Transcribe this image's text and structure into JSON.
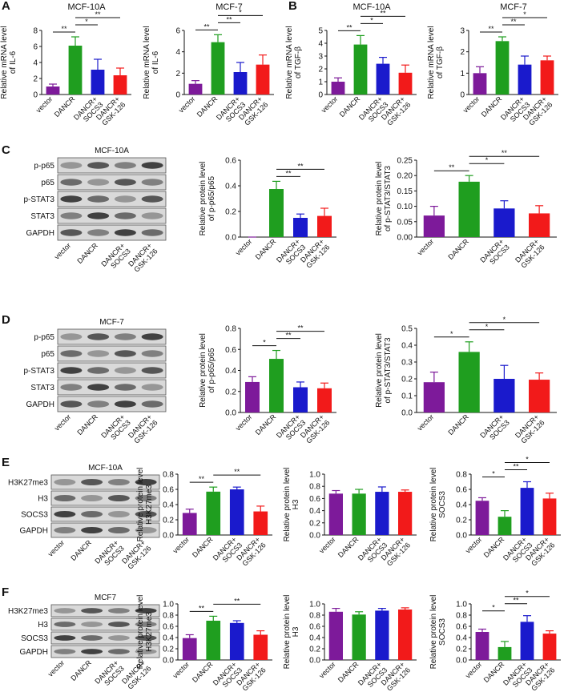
{
  "panel_labels": [
    "A",
    "B",
    "C",
    "D",
    "E",
    "F"
  ],
  "blots": [
    {
      "title": "MCF-10A",
      "rows": [
        "p-p65",
        "p65",
        "p-STAT3",
        "STAT3",
        "GAPDH"
      ],
      "lanes": [
        [
          "vector"
        ],
        [
          "DANCR"
        ],
        [
          "DANCR+",
          "SOCS3"
        ],
        [
          "DANCR+",
          "GSK-126"
        ]
      ]
    },
    {
      "title": "MCF-7",
      "rows": [
        "p-p65",
        "p65",
        "p-STAT3",
        "STAT3",
        "GAPDH"
      ],
      "lanes": [
        [
          "vector"
        ],
        [
          "DANCR"
        ],
        [
          "DANCR+",
          "SOCS3"
        ],
        [
          "DANCR+",
          "GSK-126"
        ]
      ]
    },
    {
      "title": "MCF-10A",
      "rows": [
        "H3K27me3",
        "H3",
        "SOCS3",
        "GAPDH"
      ],
      "lanes": [
        [
          "vector"
        ],
        [
          "DANCR"
        ],
        [
          "DANCR+",
          "SOCS3"
        ],
        [
          "DANCR+",
          "GSK-126"
        ]
      ]
    },
    {
      "title": "MCF7",
      "rows": [
        "H3K27me3",
        "H3",
        "SOCS3",
        "GAPDH"
      ],
      "lanes": [
        [
          "vector"
        ],
        [
          "DANCR"
        ],
        [
          "DANCR+",
          "SOCS3"
        ],
        [
          "DANCR+",
          "GSK-126"
        ]
      ]
    }
  ],
  "chart_data": [
    {
      "type": "bar",
      "title": "MCF-10A",
      "ylabel": [
        "Relative mRNA level",
        "of IL-6"
      ],
      "categories": [
        [
          "vector"
        ],
        [
          "DANCR"
        ],
        [
          "DANCR+",
          "SOCS3"
        ],
        [
          "DANCR+",
          "GSK-126"
        ]
      ],
      "values": [
        1.0,
        6.1,
        3.1,
        2.4
      ],
      "errors": [
        0.3,
        1.1,
        1.3,
        0.9
      ],
      "colors": [
        "#7d1a9a",
        "#1f9e1f",
        "#1a1acc",
        "#f21a1a"
      ],
      "ylim": [
        0,
        8
      ],
      "yticks": [
        0,
        2,
        4,
        6,
        8
      ],
      "annotations": [
        {
          "label": "**",
          "pair": [
            0,
            1
          ]
        },
        {
          "label": "*",
          "pair": [
            1,
            2
          ]
        },
        {
          "label": "**",
          "pair": [
            1,
            3
          ]
        }
      ]
    },
    {
      "type": "bar",
      "title": "MCF-7",
      "ylabel": [
        "Relative mRNA level",
        "of IL-6"
      ],
      "categories": [
        [
          "vector"
        ],
        [
          "DANCR"
        ],
        [
          "DANCR+",
          "SOCS3"
        ],
        [
          "DANCR+",
          "GSK-126"
        ]
      ],
      "values": [
        1.0,
        4.9,
        2.1,
        2.8
      ],
      "errors": [
        0.3,
        0.7,
        0.9,
        0.9
      ],
      "colors": [
        "#7d1a9a",
        "#1f9e1f",
        "#1a1acc",
        "#f21a1a"
      ],
      "ylim": [
        0,
        6
      ],
      "yticks": [
        0,
        2,
        4,
        6
      ],
      "annotations": [
        {
          "label": "**",
          "pair": [
            0,
            1
          ]
        },
        {
          "label": "**",
          "pair": [
            1,
            2
          ]
        },
        {
          "label": "*",
          "pair": [
            1,
            3
          ]
        }
      ]
    },
    {
      "type": "bar",
      "title": "MCF-10A",
      "ylabel": [
        "Relative mRNA level",
        "of TGF-β"
      ],
      "categories": [
        [
          "vector"
        ],
        [
          "DANCR"
        ],
        [
          "DANCR+",
          "SOCS3"
        ],
        [
          "DANCR+",
          "GSK-126"
        ]
      ],
      "values": [
        1.0,
        3.9,
        2.4,
        1.7
      ],
      "errors": [
        0.3,
        0.7,
        0.5,
        0.6
      ],
      "colors": [
        "#7d1a9a",
        "#1f9e1f",
        "#1a1acc",
        "#f21a1a"
      ],
      "ylim": [
        0,
        5
      ],
      "yticks": [
        0,
        1,
        2,
        3,
        4,
        5
      ],
      "annotations": [
        {
          "label": "**",
          "pair": [
            0,
            1
          ]
        },
        {
          "label": "*",
          "pair": [
            1,
            2
          ]
        },
        {
          "label": "**",
          "pair": [
            1,
            3
          ]
        }
      ]
    },
    {
      "type": "bar",
      "title": "MCF-7",
      "ylabel": [
        "Relative mRNA level",
        "of TGF-β"
      ],
      "categories": [
        [
          "vector"
        ],
        [
          "DANCR"
        ],
        [
          "DANCR+",
          "SOCS3"
        ],
        [
          "DANCR+",
          "GSK-126"
        ]
      ],
      "values": [
        1.0,
        2.5,
        1.4,
        1.6
      ],
      "errors": [
        0.3,
        0.2,
        0.4,
        0.2
      ],
      "colors": [
        "#7d1a9a",
        "#1f9e1f",
        "#1a1acc",
        "#f21a1a"
      ],
      "ylim": [
        0,
        3
      ],
      "yticks": [
        0,
        1,
        2,
        3
      ],
      "annotations": [
        {
          "label": "**",
          "pair": [
            0,
            1
          ]
        },
        {
          "label": "**",
          "pair": [
            1,
            2
          ]
        },
        {
          "label": "*",
          "pair": [
            1,
            3
          ]
        }
      ]
    },
    {
      "type": "bar",
      "ylabel": [
        "Relative protein level",
        "of p-p65/p65"
      ],
      "categories": [
        [
          "vector"
        ],
        [
          "DANCR"
        ],
        [
          "DANCR+",
          "SOCS3"
        ],
        [
          "DANCR+",
          "GSK-126"
        ]
      ],
      "values": [
        0,
        0.375,
        0.15,
        0.165
      ],
      "errors": [
        0,
        0.06,
        0.03,
        0.06
      ],
      "colors": [
        "#7d1a9a",
        "#1f9e1f",
        "#1a1acc",
        "#f21a1a"
      ],
      "ylim": [
        0,
        0.6
      ],
      "yticks": [
        {
          "value": 0,
          "label": "0.0"
        },
        0.2,
        0.4,
        0.6
      ],
      "annotations": [
        {
          "label": "**",
          "pair": [
            1,
            2
          ]
        },
        {
          "label": "**",
          "pair": [
            1,
            3
          ]
        }
      ]
    },
    {
      "type": "bar",
      "ylabel": [
        "Relative protein level",
        "of p-STAT3/STAT3"
      ],
      "categories": [
        [
          "vector"
        ],
        [
          "DANCR"
        ],
        [
          "DANCR+",
          "SOCS3"
        ],
        [
          "DANCR+",
          "GSK-126"
        ]
      ],
      "values": [
        0.07,
        0.18,
        0.093,
        0.077
      ],
      "errors": [
        0.03,
        0.02,
        0.025,
        0.025
      ],
      "colors": [
        "#7d1a9a",
        "#1f9e1f",
        "#1a1acc",
        "#f21a1a"
      ],
      "ylim": [
        0,
        0.25
      ],
      "yticks": [
        {
          "value": 0,
          "label": "0.00"
        },
        0.05,
        {
          "value": 0.1,
          "label": "0.10"
        },
        0.15,
        {
          "value": 0.2,
          "label": "0.20"
        },
        0.25
      ],
      "annotations": [
        {
          "label": "**",
          "pair": [
            0,
            1
          ]
        },
        {
          "label": "*",
          "pair": [
            1,
            2
          ]
        },
        {
          "label": "**",
          "pair": [
            1,
            3
          ]
        }
      ]
    },
    {
      "type": "bar",
      "ylabel": [
        "Relative protein level",
        "of p-p65/p65"
      ],
      "categories": [
        [
          "vector"
        ],
        [
          "DANCR"
        ],
        [
          "DANCR+",
          "SOCS3"
        ],
        [
          "DANCR+",
          "GSK-126"
        ]
      ],
      "values": [
        0.29,
        0.51,
        0.24,
        0.23
      ],
      "errors": [
        0.05,
        0.08,
        0.05,
        0.05
      ],
      "colors": [
        "#7d1a9a",
        "#1f9e1f",
        "#1a1acc",
        "#f21a1a"
      ],
      "ylim": [
        0,
        0.8
      ],
      "yticks": [
        {
          "value": 0,
          "label": "0.0"
        },
        0.2,
        0.4,
        0.6,
        0.8
      ],
      "annotations": [
        {
          "label": "*",
          "pair": [
            0,
            1
          ]
        },
        {
          "label": "**",
          "pair": [
            1,
            2
          ]
        },
        {
          "label": "**",
          "pair": [
            1,
            3
          ]
        }
      ]
    },
    {
      "type": "bar",
      "ylabel": [
        "Relative protein level",
        "of p-STAT3/STAT3"
      ],
      "categories": [
        [
          "vector"
        ],
        [
          "DANCR"
        ],
        [
          "DANCR+",
          "SOCS3"
        ],
        [
          "DANCR+",
          "GSK-126"
        ]
      ],
      "values": [
        0.18,
        0.36,
        0.2,
        0.195
      ],
      "errors": [
        0.06,
        0.06,
        0.08,
        0.04
      ],
      "colors": [
        "#7d1a9a",
        "#1f9e1f",
        "#1a1acc",
        "#f21a1a"
      ],
      "ylim": [
        0,
        0.5
      ],
      "yticks": [
        {
          "value": 0,
          "label": "0.0"
        },
        0.1,
        0.2,
        0.3,
        0.4,
        0.5
      ],
      "annotations": [
        {
          "label": "*",
          "pair": [
            0,
            1
          ]
        },
        {
          "label": "*",
          "pair": [
            1,
            2
          ]
        },
        {
          "label": "*",
          "pair": [
            1,
            3
          ]
        }
      ]
    },
    {
      "type": "bar",
      "ylabel": [
        "Relative protein level",
        "H3K27me3"
      ],
      "categories": [
        [
          "vector"
        ],
        [
          "DANCR"
        ],
        [
          "DANCR+",
          "SOCS3"
        ],
        [
          "DANCR+",
          "GSK-126"
        ]
      ],
      "values": [
        0.29,
        0.57,
        0.6,
        0.31
      ],
      "errors": [
        0.05,
        0.06,
        0.03,
        0.07
      ],
      "colors": [
        "#7d1a9a",
        "#1f9e1f",
        "#1a1acc",
        "#f21a1a"
      ],
      "ylim": [
        0,
        0.8
      ],
      "yticks": [
        {
          "value": 0,
          "label": "0.0"
        },
        0.2,
        0.4,
        0.6,
        0.8
      ],
      "annotations": [
        {
          "label": "**",
          "pair": [
            0,
            1
          ]
        },
        {
          "label": "**",
          "pair": [
            1,
            3
          ]
        }
      ]
    },
    {
      "type": "bar",
      "ylabel": [
        "Relative protein level",
        "H3"
      ],
      "categories": [
        [
          "vector"
        ],
        [
          "DANCR"
        ],
        [
          "DANCR+",
          "SOCS3"
        ],
        [
          "DANCR+",
          "GSK-126"
        ]
      ],
      "values": [
        0.68,
        0.68,
        0.71,
        0.71
      ],
      "errors": [
        0.05,
        0.07,
        0.08,
        0.03
      ],
      "colors": [
        "#7d1a9a",
        "#1f9e1f",
        "#1a1acc",
        "#f21a1a"
      ],
      "ylim": [
        0,
        1
      ],
      "yticks": [
        {
          "value": 0,
          "label": "0.0"
        },
        0.2,
        0.4,
        0.6,
        0.8,
        {
          "value": 1,
          "label": "1.0"
        }
      ],
      "annotations": []
    },
    {
      "type": "bar",
      "ylabel": [
        "Relative protein level",
        "SOCS3"
      ],
      "categories": [
        [
          "vector"
        ],
        [
          "DANCR"
        ],
        [
          "DANCR+",
          "SOCS3"
        ],
        [
          "DANCR+",
          "GSK-126"
        ]
      ],
      "values": [
        0.45,
        0.24,
        0.62,
        0.48
      ],
      "errors": [
        0.04,
        0.08,
        0.08,
        0.07
      ],
      "colors": [
        "#7d1a9a",
        "#1f9e1f",
        "#1a1acc",
        "#f21a1a"
      ],
      "ylim": [
        0,
        0.8
      ],
      "yticks": [
        {
          "value": 0,
          "label": "0.0"
        },
        0.2,
        0.4,
        0.6,
        0.8
      ],
      "annotations": [
        {
          "label": "*",
          "pair": [
            0,
            1
          ]
        },
        {
          "label": "**",
          "pair": [
            1,
            2
          ]
        },
        {
          "label": "*",
          "pair": [
            1,
            3
          ]
        }
      ]
    },
    {
      "type": "bar",
      "ylabel": [
        "Relative protein level",
        "H3K27me3"
      ],
      "categories": [
        [
          "vector"
        ],
        [
          "DANCR"
        ],
        [
          "DANCR+",
          "SOCS3"
        ],
        [
          "DANCR+",
          "GSK-126"
        ]
      ],
      "values": [
        0.39,
        0.7,
        0.66,
        0.45
      ],
      "errors": [
        0.06,
        0.08,
        0.04,
        0.07
      ],
      "colors": [
        "#7d1a9a",
        "#1f9e1f",
        "#1a1acc",
        "#f21a1a"
      ],
      "ylim": [
        0,
        1
      ],
      "yticks": [
        {
          "value": 0,
          "label": "0.0"
        },
        0.2,
        0.4,
        0.6,
        0.8,
        {
          "value": 1,
          "label": "1.0"
        }
      ],
      "annotations": [
        {
          "label": "**",
          "pair": [
            0,
            1
          ]
        },
        {
          "label": "**",
          "pair": [
            1,
            3
          ]
        }
      ]
    },
    {
      "type": "bar",
      "ylabel": [
        "Relative protein level",
        "H3"
      ],
      "categories": [
        [
          "vector"
        ],
        [
          "DANCR"
        ],
        [
          "DANCR+",
          "SOCS3"
        ],
        [
          "DANCR+",
          "GSK-126"
        ]
      ],
      "values": [
        0.86,
        0.81,
        0.88,
        0.9
      ],
      "errors": [
        0.06,
        0.05,
        0.04,
        0.03
      ],
      "colors": [
        "#7d1a9a",
        "#1f9e1f",
        "#1a1acc",
        "#f21a1a"
      ],
      "ylim": [
        0,
        1
      ],
      "yticks": [
        {
          "value": 0,
          "label": "0.0"
        },
        0.2,
        0.4,
        0.6,
        0.8,
        {
          "value": 1,
          "label": "1.0"
        }
      ],
      "annotations": []
    },
    {
      "type": "bar",
      "ylabel": [
        "Relative protein level",
        "SOCS3"
      ],
      "categories": [
        [
          "vector"
        ],
        [
          "DANCR"
        ],
        [
          "DANCR+",
          "SOCS3"
        ],
        [
          "DANCR+",
          "GSK-126"
        ]
      ],
      "values": [
        0.5,
        0.23,
        0.68,
        0.47
      ],
      "errors": [
        0.05,
        0.1,
        0.11,
        0.05
      ],
      "colors": [
        "#7d1a9a",
        "#1f9e1f",
        "#1a1acc",
        "#f21a1a"
      ],
      "ylim": [
        0,
        1
      ],
      "yticks": [
        {
          "value": 0,
          "label": "0.0"
        },
        0.2,
        0.4,
        0.6,
        0.8,
        {
          "value": 1,
          "label": "1.0"
        }
      ],
      "annotations": [
        {
          "label": "*",
          "pair": [
            0,
            1
          ]
        },
        {
          "label": "**",
          "pair": [
            1,
            2
          ]
        },
        {
          "label": "*",
          "pair": [
            1,
            3
          ]
        }
      ]
    }
  ]
}
